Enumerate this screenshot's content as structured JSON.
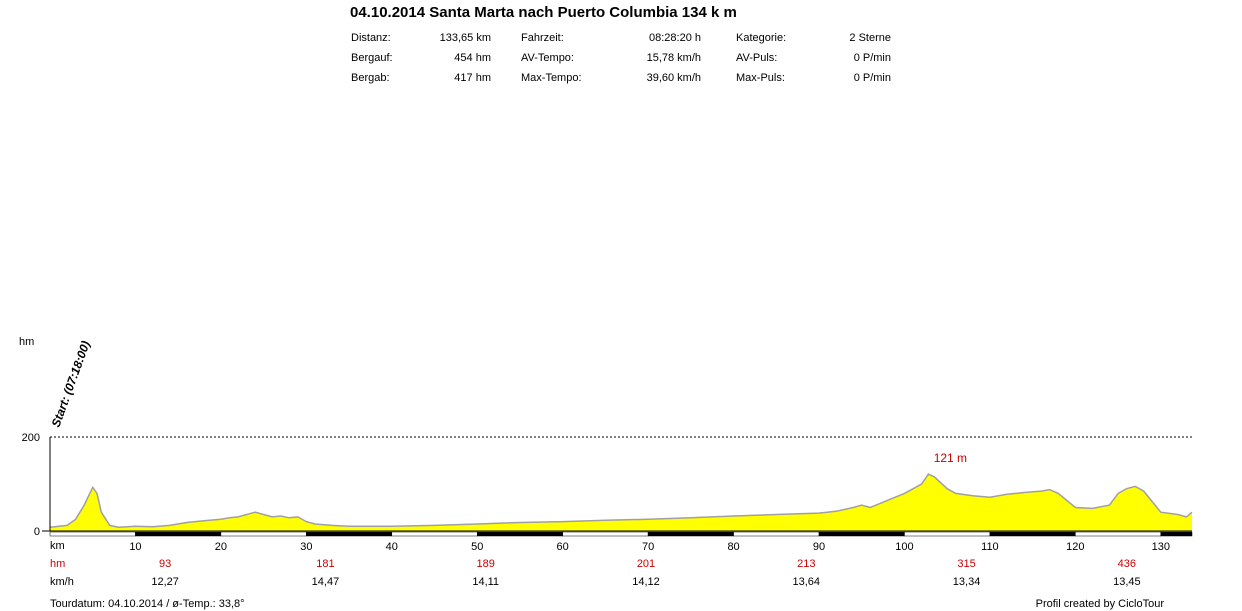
{
  "title": "04.10.2014 Santa Marta nach Puerto Columbia 134 k m",
  "stats": [
    {
      "label": "Distanz:",
      "value": "133,65 km"
    },
    {
      "label": "Bergauf:",
      "value": "454 hm"
    },
    {
      "label": "Bergab:",
      "value": "417 hm"
    },
    {
      "label": "Fahrzeit:",
      "value": "08:28:20 h"
    },
    {
      "label": "AV-Tempo:",
      "value": "15,78 km/h"
    },
    {
      "label": "Max-Tempo:",
      "value": "39,60 km/h"
    },
    {
      "label": "Kategorie:",
      "value": "2 Sterne"
    },
    {
      "label": "AV-Puls:",
      "value": "0 P/min"
    },
    {
      "label": "Max-Puls:",
      "value": "0 P/min"
    }
  ],
  "footer": {
    "left": "Tourdatum: 04.10.2014  /  ø-Temp.: 33,8°",
    "right": "Profil created by CicloTour"
  },
  "colors": {
    "fill": "#ffff00",
    "outline": "#a0a0a0",
    "hm_text": "#cc0000",
    "axis": "#000000"
  },
  "chart_data": {
    "type": "area",
    "ylabel": "hm",
    "xlabel": "km",
    "xlim": [
      0,
      133.65
    ],
    "ylim": [
      0,
      200
    ],
    "yticks": [
      0,
      200
    ],
    "xticks": [
      10,
      20,
      30,
      40,
      50,
      60,
      70,
      80,
      90,
      100,
      110,
      120,
      130
    ],
    "grid_line": {
      "y": 200,
      "style": "dotted"
    },
    "start_annotation": "Start: (07:18:00)",
    "max_annotation": {
      "x": 102.8,
      "y": 121,
      "label": "121 m"
    },
    "row_labels": {
      "hm": "hm",
      "speed": "km/h"
    },
    "segments": [
      {
        "hm": "93",
        "speed": "12,27"
      },
      {
        "hm": "181",
        "speed": "14,47"
      },
      {
        "hm": "189",
        "speed": "14,11"
      },
      {
        "hm": "201",
        "speed": "14,12"
      },
      {
        "hm": "213",
        "speed": "13,64"
      },
      {
        "hm": "315",
        "speed": "13,34"
      },
      {
        "hm": "436",
        "speed": "13,45"
      }
    ],
    "profile": {
      "x": [
        0,
        2,
        3,
        4,
        5,
        5.5,
        6,
        7,
        8,
        10,
        12,
        14,
        16,
        18,
        20,
        21,
        22,
        24,
        25,
        26,
        27,
        28,
        29,
        30,
        31,
        33,
        35,
        40,
        45,
        50,
        55,
        60,
        65,
        70,
        75,
        80,
        85,
        90,
        92,
        94,
        95,
        96,
        98,
        100,
        102,
        102.8,
        103.5,
        105,
        106,
        108,
        110,
        112,
        114,
        116,
        117,
        118,
        120,
        122,
        124,
        125,
        126,
        127,
        128,
        130,
        132,
        133,
        133.65
      ],
      "y": [
        8,
        12,
        25,
        55,
        93,
        80,
        40,
        12,
        8,
        10,
        9,
        12,
        18,
        22,
        25,
        28,
        30,
        40,
        35,
        30,
        32,
        28,
        30,
        20,
        15,
        12,
        10,
        10,
        12,
        15,
        18,
        20,
        23,
        25,
        28,
        32,
        35,
        38,
        42,
        50,
        55,
        50,
        65,
        80,
        100,
        121,
        115,
        90,
        80,
        75,
        72,
        78,
        82,
        85,
        88,
        80,
        50,
        48,
        55,
        80,
        90,
        95,
        85,
        40,
        35,
        30,
        40
      ]
    }
  }
}
